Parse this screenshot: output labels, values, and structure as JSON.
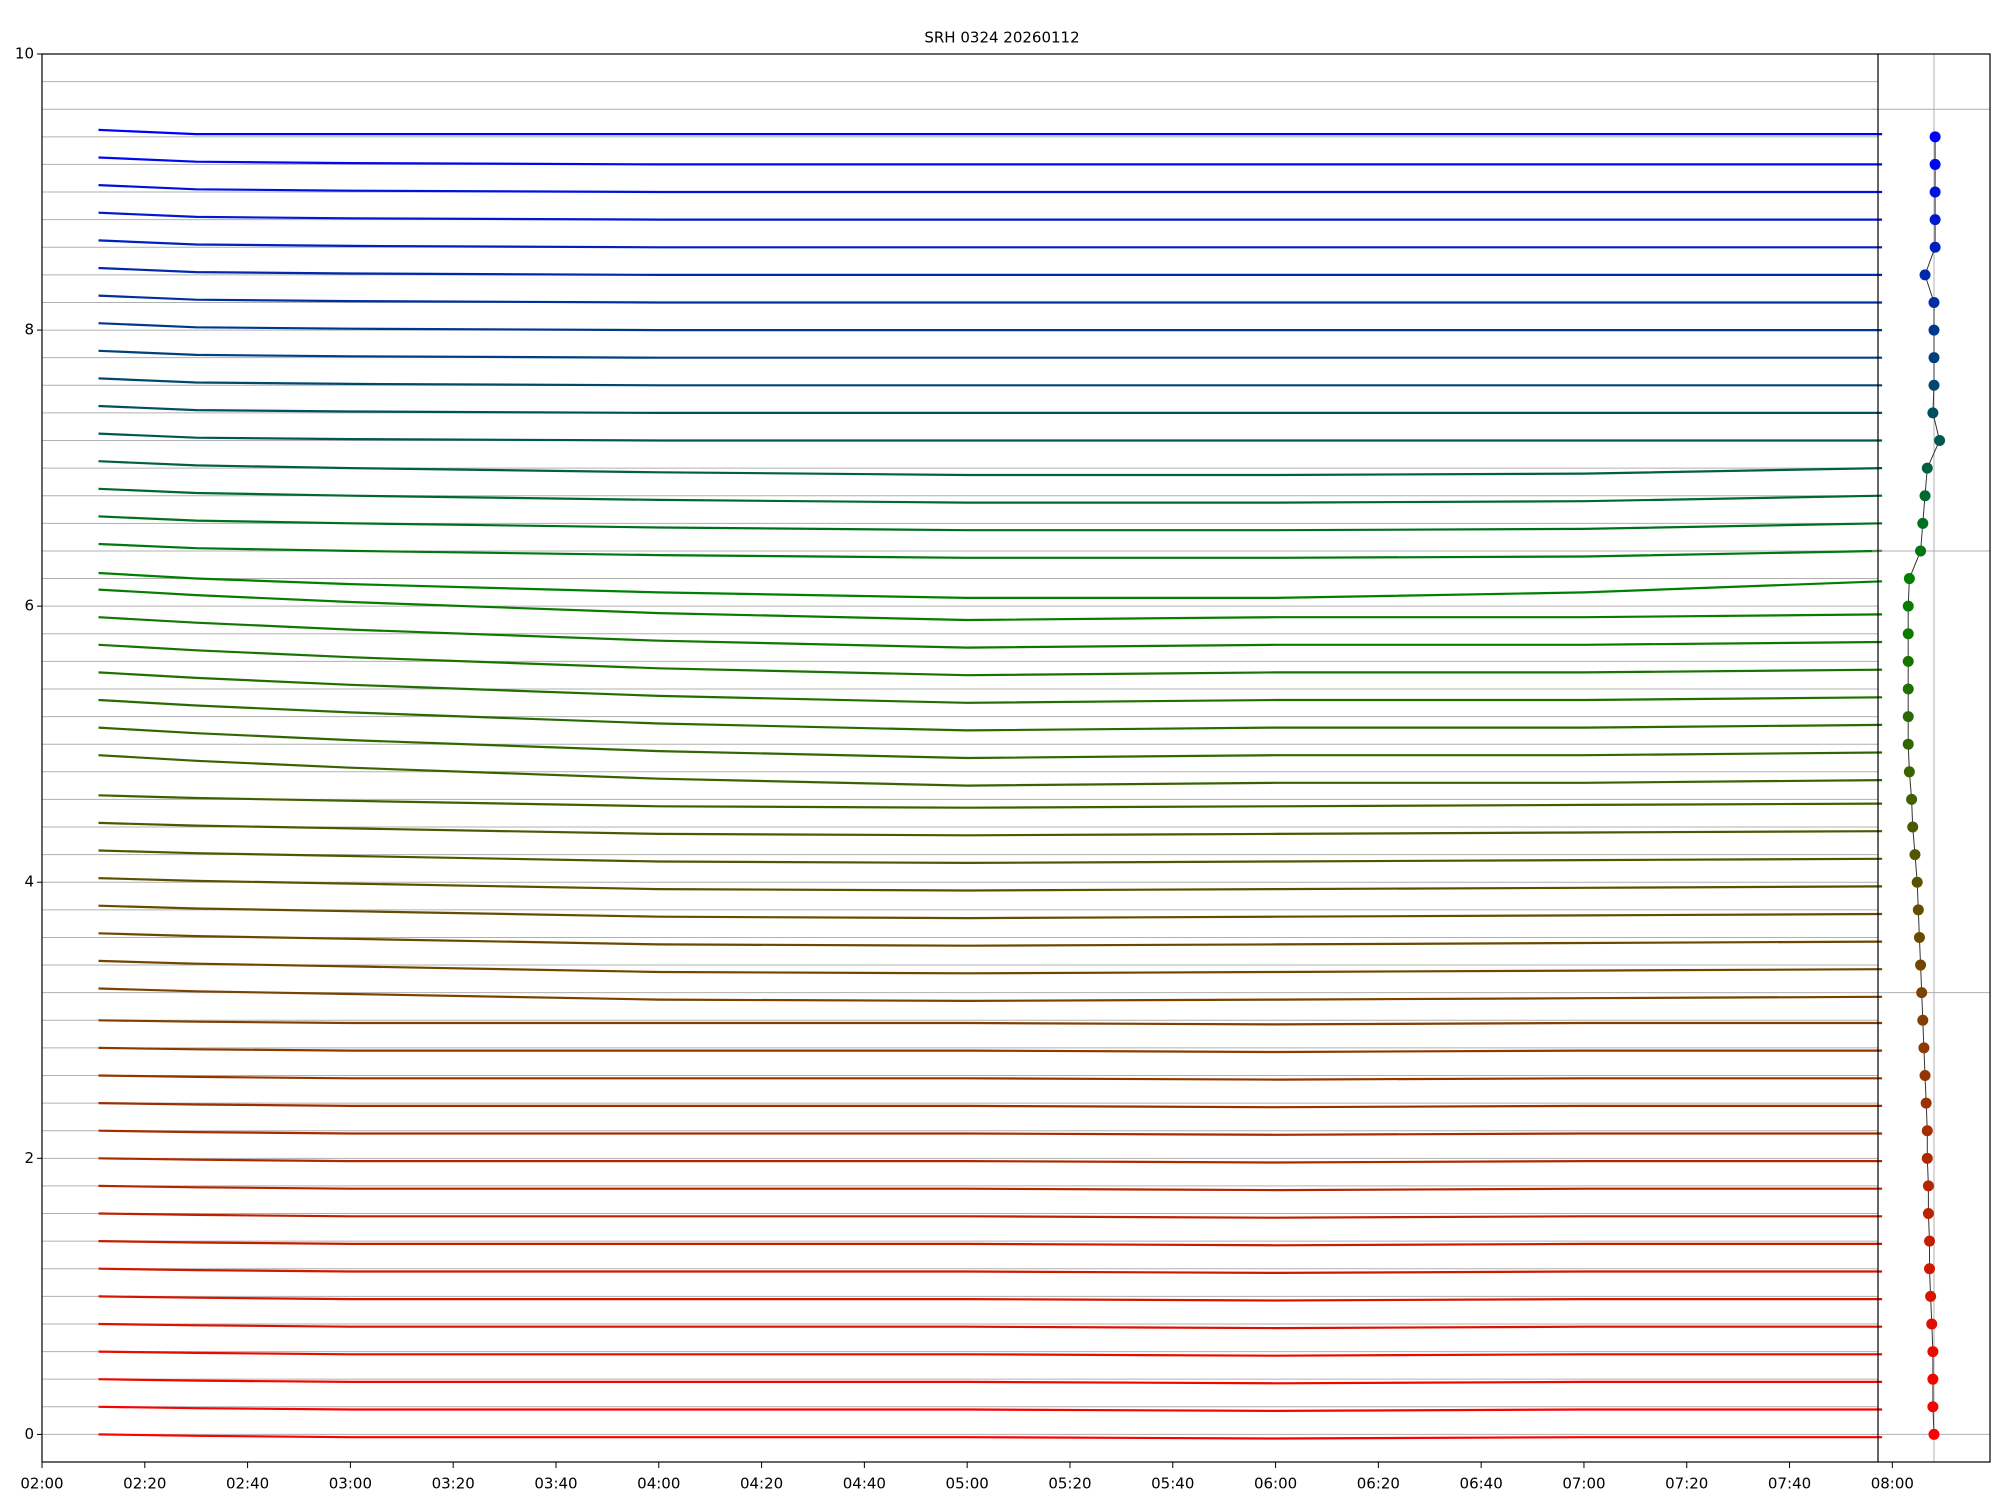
{
  "chart_data": [
    {
      "type": "line",
      "title": "SRH 0324 20260112",
      "xlim": [
        120,
        499
      ],
      "ylim": [
        -0.2,
        10
      ],
      "xticks": [
        {
          "value": 120,
          "label": "02:00"
        },
        {
          "value": 140,
          "label": "02:20"
        },
        {
          "value": 160,
          "label": "02:40"
        },
        {
          "value": 180,
          "label": "03:00"
        },
        {
          "value": 200,
          "label": "03:20"
        },
        {
          "value": 220,
          "label": "03:40"
        },
        {
          "value": 240,
          "label": "04:00"
        },
        {
          "value": 260,
          "label": "04:20"
        },
        {
          "value": 280,
          "label": "04:40"
        },
        {
          "value": 300,
          "label": "05:00"
        },
        {
          "value": 320,
          "label": "05:20"
        },
        {
          "value": 340,
          "label": "05:40"
        },
        {
          "value": 360,
          "label": "06:00"
        },
        {
          "value": 380,
          "label": "06:20"
        },
        {
          "value": 400,
          "label": "06:40"
        },
        {
          "value": 420,
          "label": "07:00"
        },
        {
          "value": 440,
          "label": "07:20"
        },
        {
          "value": 460,
          "label": "07:40"
        },
        {
          "value": 480,
          "label": "08:00"
        }
      ],
      "yticks": [
        0,
        2,
        4,
        6,
        8,
        10
      ],
      "grid_step": 0.2,
      "x": [
        131,
        150,
        180,
        240,
        300,
        360,
        420,
        478
      ],
      "series": [
        {
          "color": "#ff0000",
          "values": [
            0,
            -0.01,
            -0.02,
            -0.02,
            -0.02,
            -0.03,
            -0.02,
            -0.02
          ]
        },
        {
          "color": "#f70400",
          "values": [
            0.2,
            0.19,
            0.18,
            0.18,
            0.18,
            0.17,
            0.18,
            0.18
          ]
        },
        {
          "color": "#ee0800",
          "values": [
            0.4,
            0.39,
            0.38,
            0.38,
            0.38,
            0.37,
            0.38,
            0.38
          ]
        },
        {
          "color": "#e60c00",
          "values": [
            0.6,
            0.59,
            0.58,
            0.58,
            0.58,
            0.57,
            0.58,
            0.58
          ]
        },
        {
          "color": "#de1000",
          "values": [
            0.8,
            0.79,
            0.78,
            0.78,
            0.78,
            0.77,
            0.78,
            0.78
          ]
        },
        {
          "color": "#d61500",
          "values": [
            1,
            0.99,
            0.98,
            0.98,
            0.98,
            0.97,
            0.98,
            0.98
          ]
        },
        {
          "color": "#ce1900",
          "values": [
            1.2,
            1.19,
            1.18,
            1.18,
            1.18,
            1.17,
            1.18,
            1.18
          ]
        },
        {
          "color": "#c51d00",
          "values": [
            1.4,
            1.39,
            1.38,
            1.38,
            1.38,
            1.37,
            1.38,
            1.38
          ]
        },
        {
          "color": "#bd2100",
          "values": [
            1.6,
            1.59,
            1.58,
            1.58,
            1.58,
            1.57,
            1.58,
            1.58
          ]
        },
        {
          "color": "#b52500",
          "values": [
            1.8,
            1.79,
            1.78,
            1.78,
            1.78,
            1.77,
            1.78,
            1.78
          ]
        },
        {
          "color": "#ad2900",
          "values": [
            2,
            1.99,
            1.98,
            1.98,
            1.98,
            1.97,
            1.98,
            1.98
          ]
        },
        {
          "color": "#a52d00",
          "values": [
            2.2,
            2.19,
            2.18,
            2.18,
            2.18,
            2.17,
            2.18,
            2.18
          ]
        },
        {
          "color": "#9c3100",
          "values": [
            2.4,
            2.39,
            2.38,
            2.38,
            2.38,
            2.37,
            2.38,
            2.38
          ]
        },
        {
          "color": "#943500",
          "values": [
            2.6,
            2.59,
            2.58,
            2.58,
            2.58,
            2.57,
            2.58,
            2.58
          ]
        },
        {
          "color": "#8c3a00",
          "values": [
            2.8,
            2.79,
            2.78,
            2.78,
            2.78,
            2.77,
            2.78,
            2.78
          ]
        },
        {
          "color": "#843e00",
          "values": [
            3,
            2.99,
            2.98,
            2.98,
            2.98,
            2.97,
            2.98,
            2.98
          ]
        },
        {
          "color": "#7b4200",
          "values": [
            3.23,
            3.21,
            3.19,
            3.15,
            3.14,
            3.15,
            3.16,
            3.17
          ]
        },
        {
          "color": "#734600",
          "values": [
            3.43,
            3.41,
            3.39,
            3.35,
            3.34,
            3.35,
            3.36,
            3.37
          ]
        },
        {
          "color": "#6b4a00",
          "values": [
            3.63,
            3.61,
            3.59,
            3.55,
            3.54,
            3.55,
            3.56,
            3.57
          ]
        },
        {
          "color": "#634e00",
          "values": [
            3.83,
            3.81,
            3.79,
            3.75,
            3.74,
            3.75,
            3.76,
            3.77
          ]
        },
        {
          "color": "#5b5200",
          "values": [
            4.03,
            4.01,
            3.99,
            3.95,
            3.94,
            3.95,
            3.96,
            3.97
          ]
        },
        {
          "color": "#525600",
          "values": [
            4.23,
            4.21,
            4.19,
            4.15,
            4.14,
            4.15,
            4.16,
            4.17
          ]
        },
        {
          "color": "#4a5a00",
          "values": [
            4.43,
            4.41,
            4.39,
            4.35,
            4.34,
            4.35,
            4.36,
            4.37
          ]
        },
        {
          "color": "#425f00",
          "values": [
            4.63,
            4.61,
            4.59,
            4.55,
            4.54,
            4.55,
            4.56,
            4.57
          ]
        },
        {
          "color": "#3a6300",
          "values": [
            4.92,
            4.88,
            4.83,
            4.75,
            4.7,
            4.72,
            4.72,
            4.74
          ]
        },
        {
          "color": "#316700",
          "values": [
            5.12,
            5.08,
            5.03,
            4.95,
            4.9,
            4.92,
            4.92,
            4.94
          ]
        },
        {
          "color": "#296b00",
          "values": [
            5.32,
            5.28,
            5.23,
            5.15,
            5.1,
            5.12,
            5.12,
            5.14
          ]
        },
        {
          "color": "#216f00",
          "values": [
            5.52,
            5.48,
            5.43,
            5.35,
            5.3,
            5.32,
            5.32,
            5.34
          ]
        },
        {
          "color": "#197300",
          "values": [
            5.72,
            5.68,
            5.63,
            5.55,
            5.5,
            5.52,
            5.52,
            5.54
          ]
        },
        {
          "color": "#107700",
          "values": [
            5.92,
            5.88,
            5.83,
            5.75,
            5.7,
            5.72,
            5.72,
            5.74
          ]
        },
        {
          "color": "#087b00",
          "values": [
            6.12,
            6.08,
            6.03,
            5.95,
            5.9,
            5.92,
            5.92,
            5.94
          ]
        },
        {
          "color": "#008000",
          "values": [
            6.24,
            6.2,
            6.16,
            6.1,
            6.06,
            6.06,
            6.1,
            6.18
          ]
        },
        {
          "color": "#007710",
          "values": [
            6.45,
            6.42,
            6.4,
            6.37,
            6.35,
            6.35,
            6.36,
            6.4
          ]
        },
        {
          "color": "#007020",
          "values": [
            6.65,
            6.62,
            6.6,
            6.57,
            6.55,
            6.55,
            6.56,
            6.6
          ]
        },
        {
          "color": "#006830",
          "values": [
            6.85,
            6.82,
            6.8,
            6.77,
            6.75,
            6.75,
            6.76,
            6.8
          ]
        },
        {
          "color": "#006040",
          "values": [
            7.05,
            7.02,
            7,
            6.97,
            6.95,
            6.95,
            6.96,
            7
          ]
        },
        {
          "color": "#005850",
          "values": [
            7.25,
            7.22,
            7.21,
            7.2,
            7.2,
            7.2,
            7.2,
            7.2
          ]
        },
        {
          "color": "#005060",
          "values": [
            7.45,
            7.42,
            7.41,
            7.4,
            7.4,
            7.4,
            7.4,
            7.4
          ]
        },
        {
          "color": "#004870",
          "values": [
            7.65,
            7.62,
            7.61,
            7.6,
            7.6,
            7.6,
            7.6,
            7.6
          ]
        },
        {
          "color": "#004080",
          "values": [
            7.85,
            7.82,
            7.81,
            7.8,
            7.8,
            7.8,
            7.8,
            7.8
          ]
        },
        {
          "color": "#00388f",
          "values": [
            8.05,
            8.02,
            8.01,
            8,
            8,
            8,
            8,
            8
          ]
        },
        {
          "color": "#00309f",
          "values": [
            8.25,
            8.22,
            8.21,
            8.2,
            8.2,
            8.2,
            8.2,
            8.2
          ]
        },
        {
          "color": "#0028af",
          "values": [
            8.45,
            8.42,
            8.41,
            8.4,
            8.4,
            8.4,
            8.4,
            8.4
          ]
        },
        {
          "color": "#0020bf",
          "values": [
            8.65,
            8.62,
            8.61,
            8.6,
            8.6,
            8.6,
            8.6,
            8.6
          ]
        },
        {
          "color": "#0018cf",
          "values": [
            8.85,
            8.82,
            8.81,
            8.8,
            8.8,
            8.8,
            8.8,
            8.8
          ]
        },
        {
          "color": "#0010df",
          "values": [
            9.05,
            9.02,
            9.01,
            9,
            9,
            9,
            9,
            9
          ]
        },
        {
          "color": "#0008ef",
          "values": [
            9.25,
            9.22,
            9.21,
            9.2,
            9.2,
            9.2,
            9.2,
            9.2
          ]
        },
        {
          "color": "#0000ff",
          "values": [
            9.45,
            9.42,
            9.42,
            9.42,
            9.42,
            9.42,
            9.42,
            9.42
          ]
        }
      ]
    },
    {
      "type": "scatter",
      "xlim": [
        0,
        100
      ],
      "ygrid": [
        0,
        3.2,
        6.4,
        9.6
      ],
      "xgrid": [
        50
      ],
      "x": [
        50,
        49,
        49,
        49,
        48,
        47,
        46,
        46,
        45,
        45,
        44,
        44,
        43,
        42,
        41,
        40,
        39,
        38,
        37,
        36,
        35,
        33,
        31,
        30,
        28,
        27,
        27,
        27,
        27,
        27,
        27,
        28,
        38,
        40,
        42,
        44,
        55,
        49,
        50,
        50,
        50,
        50,
        42,
        51,
        51,
        51,
        51,
        51
      ],
      "y": [
        0,
        0.2,
        0.4,
        0.6,
        0.8,
        1,
        1.2,
        1.4,
        1.6,
        1.8,
        2,
        2.2,
        2.4,
        2.6,
        2.8,
        3,
        3.2,
        3.4,
        3.6,
        3.8,
        4,
        4.2,
        4.4,
        4.6,
        4.8,
        5,
        5.2,
        5.4,
        5.6,
        5.8,
        6,
        6.2,
        6.4,
        6.6,
        6.8,
        7,
        7.2,
        7.4,
        7.6,
        7.8,
        8,
        8.2,
        8.4,
        8.6,
        8.8,
        9,
        9.2,
        9.4
      ]
    }
  ]
}
